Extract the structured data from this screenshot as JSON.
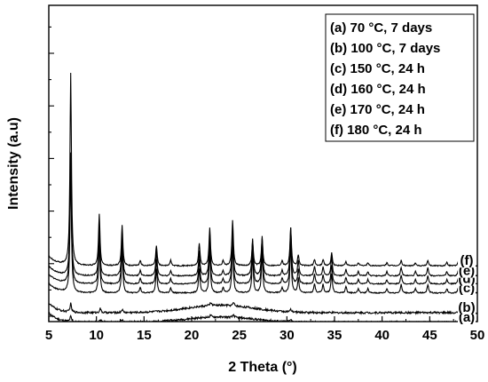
{
  "chart_data": {
    "type": "line",
    "title": "",
    "xlabel": "2 Theta (°)",
    "ylabel": "Intensity (a.u)",
    "xlim": [
      5,
      50
    ],
    "xticks": [
      5,
      10,
      15,
      20,
      25,
      30,
      35,
      40,
      45,
      50
    ],
    "y_ticks_labeled": false,
    "grid": false,
    "legend_position": "top-right",
    "legend": [
      "(a) 70 °C, 7 days",
      "(b) 100 °C, 7 days",
      "(c) 150 °C, 24 h",
      "(d) 160 °C, 24 h",
      "(e) 170 °C, 24 h",
      "(f)  180 °C, 24 h"
    ],
    "series": [
      {
        "label": "(a)",
        "baseline": 0.6,
        "amorphous_hump": {
          "center": 23,
          "width": 5,
          "height": 0.5
        },
        "peaks": [
          [
            7.3,
            0.5
          ],
          [
            10.4,
            0.3
          ],
          [
            12.7,
            0.25
          ],
          [
            22.0,
            0.2
          ],
          [
            24.4,
            0.25
          ],
          [
            30.4,
            0.2
          ]
        ]
      },
      {
        "label": "(b)",
        "baseline": 1.5,
        "amorphous_hump": {
          "center": 23,
          "width": 5,
          "height": 0.7
        },
        "peaks": [
          [
            7.3,
            0.8
          ],
          [
            10.4,
            0.4
          ],
          [
            12.7,
            0.3
          ],
          [
            22.0,
            0.3
          ],
          [
            24.4,
            0.3
          ],
          [
            30.4,
            0.2
          ]
        ]
      },
      {
        "label": "(c)",
        "baseline": 3.35,
        "peaks": [
          [
            7.3,
            11.5
          ],
          [
            10.3,
            4.6
          ],
          [
            12.7,
            4.0
          ],
          [
            14.6,
            0.5
          ],
          [
            16.3,
            2.3
          ],
          [
            17.8,
            0.5
          ],
          [
            20.8,
            2.3
          ],
          [
            21.9,
            3.8
          ],
          [
            23.3,
            0.5
          ],
          [
            24.3,
            4.5
          ],
          [
            26.4,
            3.5
          ],
          [
            27.4,
            3.7
          ],
          [
            29.5,
            0.5
          ],
          [
            30.4,
            4.5
          ],
          [
            31.2,
            1.4
          ],
          [
            32.9,
            0.9
          ],
          [
            33.8,
            0.8
          ],
          [
            34.7,
            1.8
          ],
          [
            36.2,
            0.6
          ],
          [
            37.5,
            0.4
          ],
          [
            38.5,
            0.4
          ],
          [
            40.5,
            0.4
          ],
          [
            42.0,
            0.8
          ],
          [
            43.5,
            0.4
          ],
          [
            44.8,
            0.8
          ],
          [
            46.8,
            0.4
          ],
          [
            48.0,
            0.5
          ]
        ]
      },
      {
        "label": "(d)",
        "baseline": 4.2,
        "peaks": [
          [
            7.3,
            11.5
          ],
          [
            10.3,
            4.6
          ],
          [
            12.7,
            4.0
          ],
          [
            14.6,
            0.5
          ],
          [
            16.3,
            2.3
          ],
          [
            17.8,
            0.5
          ],
          [
            20.8,
            2.3
          ],
          [
            21.9,
            3.8
          ],
          [
            23.3,
            0.5
          ],
          [
            24.3,
            4.5
          ],
          [
            26.4,
            3.5
          ],
          [
            27.4,
            3.7
          ],
          [
            29.5,
            0.5
          ],
          [
            30.4,
            4.5
          ],
          [
            31.2,
            1.4
          ],
          [
            32.9,
            0.9
          ],
          [
            33.8,
            0.8
          ],
          [
            34.7,
            1.8
          ],
          [
            36.2,
            0.6
          ],
          [
            37.5,
            0.4
          ],
          [
            38.5,
            0.4
          ],
          [
            40.5,
            0.4
          ],
          [
            42.0,
            0.8
          ],
          [
            43.5,
            0.4
          ],
          [
            44.8,
            0.8
          ],
          [
            46.8,
            0.4
          ],
          [
            48.0,
            0.5
          ]
        ]
      },
      {
        "label": "(e)",
        "baseline": 4.95,
        "peaks": [
          [
            7.3,
            11.5
          ],
          [
            10.3,
            4.6
          ],
          [
            12.7,
            4.0
          ],
          [
            14.6,
            0.5
          ],
          [
            16.3,
            2.3
          ],
          [
            17.8,
            0.5
          ],
          [
            20.8,
            2.3
          ],
          [
            21.9,
            3.8
          ],
          [
            23.3,
            0.5
          ],
          [
            24.3,
            4.5
          ],
          [
            26.4,
            3.5
          ],
          [
            27.4,
            3.7
          ],
          [
            29.5,
            0.5
          ],
          [
            30.4,
            4.5
          ],
          [
            31.2,
            1.4
          ],
          [
            32.9,
            0.9
          ],
          [
            33.8,
            0.8
          ],
          [
            34.7,
            1.8
          ],
          [
            36.2,
            0.6
          ],
          [
            37.5,
            0.4
          ],
          [
            38.5,
            0.4
          ],
          [
            40.5,
            0.4
          ],
          [
            42.0,
            0.8
          ],
          [
            43.5,
            0.4
          ],
          [
            44.8,
            0.8
          ],
          [
            46.8,
            0.4
          ],
          [
            48.0,
            0.5
          ]
        ]
      },
      {
        "label": "(f)",
        "baseline": 5.9,
        "peaks": [
          [
            7.3,
            18.0
          ],
          [
            10.3,
            4.9
          ],
          [
            12.7,
            3.8
          ],
          [
            14.6,
            0.5
          ],
          [
            16.3,
            1.9
          ],
          [
            17.8,
            0.5
          ],
          [
            20.8,
            2.1
          ],
          [
            21.9,
            3.6
          ],
          [
            23.3,
            0.5
          ],
          [
            24.3,
            4.3
          ],
          [
            26.4,
            2.3
          ],
          [
            27.4,
            2.6
          ],
          [
            29.5,
            0.5
          ],
          [
            30.4,
            3.6
          ],
          [
            31.2,
            1.0
          ],
          [
            32.9,
            0.6
          ],
          [
            33.8,
            0.6
          ],
          [
            34.7,
            1.2
          ],
          [
            36.2,
            0.4
          ],
          [
            37.5,
            0.3
          ],
          [
            38.5,
            0.3
          ],
          [
            40.5,
            0.3
          ],
          [
            42.0,
            0.5
          ],
          [
            43.5,
            0.3
          ],
          [
            44.8,
            0.5
          ],
          [
            46.8,
            0.3
          ],
          [
            48.0,
            0.4
          ]
        ]
      }
    ]
  }
}
